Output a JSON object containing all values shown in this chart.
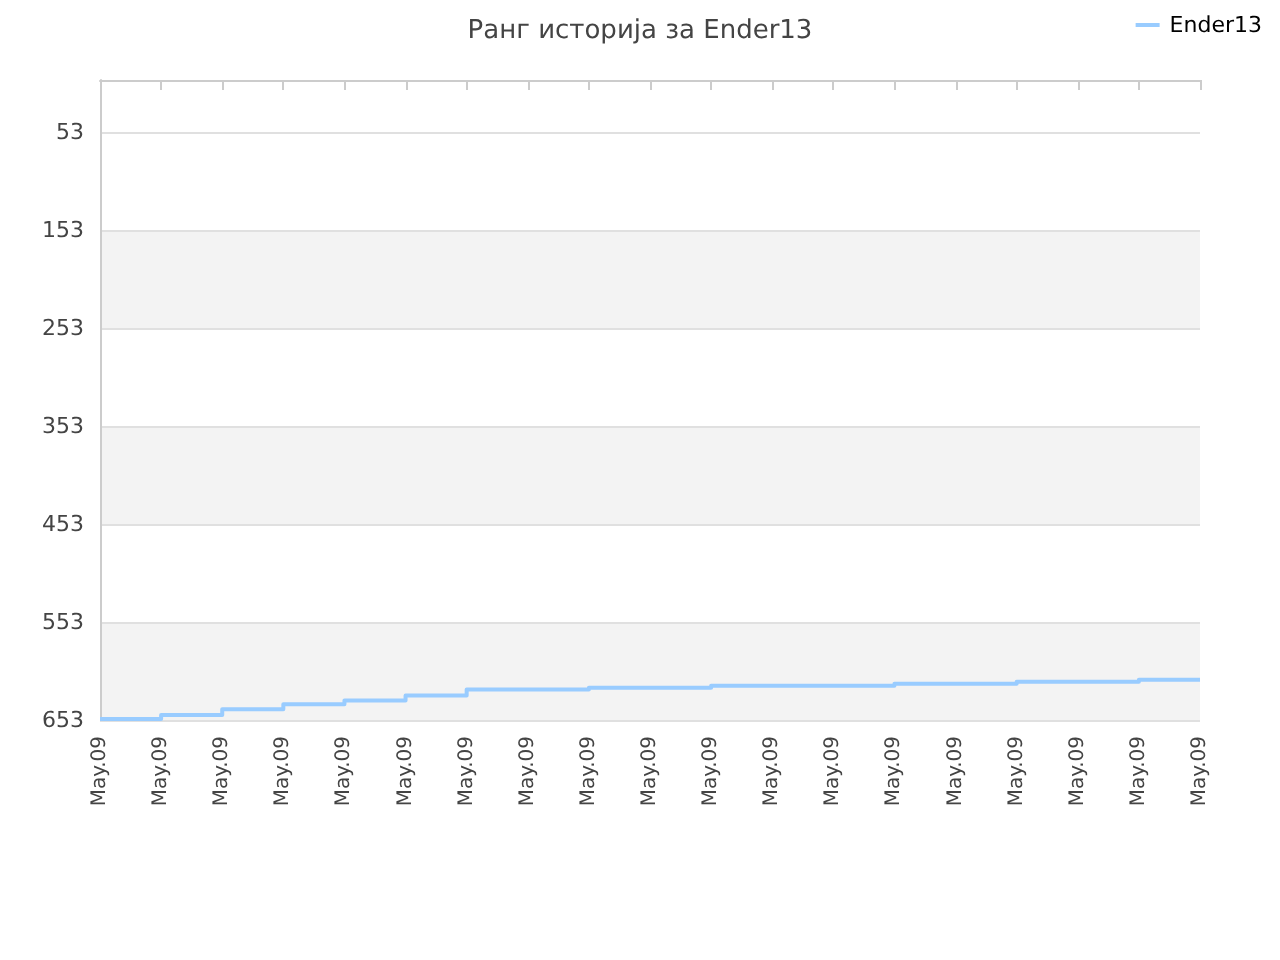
{
  "chart_data": {
    "type": "step",
    "title": "Ранг историја за Ender13",
    "categories": [
      "May.09",
      "May.09",
      "May.09",
      "May.09",
      "May.09",
      "May.09",
      "May.09",
      "May.09",
      "May.09",
      "May.09",
      "May.09",
      "May.09",
      "May.09",
      "May.09",
      "May.09",
      "May.09",
      "May.09",
      "May.09",
      "May.09"
    ],
    "series": [
      {
        "name": "Ender13",
        "color": "#99ccff",
        "values": [
          652,
          648,
          642,
          637,
          633,
          628,
          622,
          622,
          620,
          620,
          618,
          618,
          618,
          616,
          616,
          614,
          614,
          612,
          612
        ]
      }
    ],
    "ylim": [
      653,
      0
    ],
    "yticks": [
      53,
      153,
      253,
      353,
      453,
      553,
      653
    ],
    "grid": "y",
    "legend": "top right",
    "marker": "none",
    "line_style": "solid"
  }
}
